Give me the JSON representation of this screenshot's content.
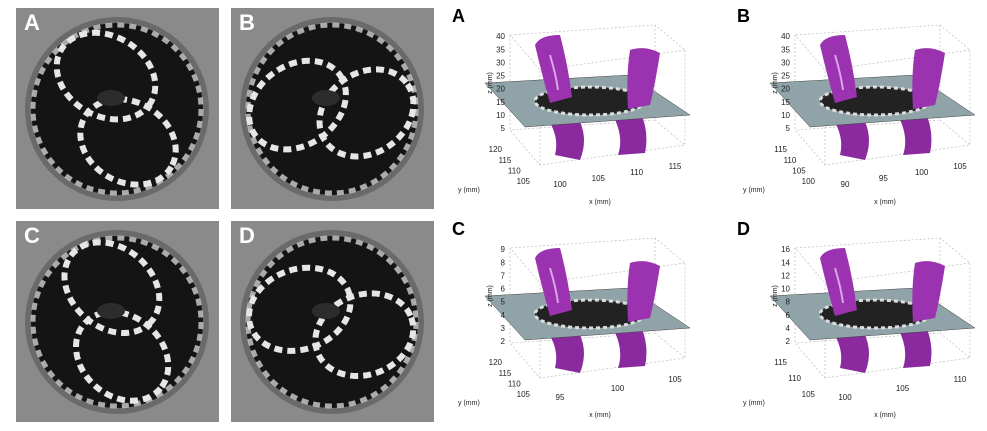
{
  "left_panels": [
    {
      "label": "A"
    },
    {
      "label": "B"
    },
    {
      "label": "C"
    },
    {
      "label": "D"
    }
  ],
  "right_panels": [
    {
      "label": "A",
      "z_label": "z (mm)",
      "z_ticks": [
        40,
        35,
        30,
        25,
        20,
        15,
        10,
        5
      ],
      "y_label": "y (mm)",
      "y_ticks": [
        120,
        115,
        110,
        105
      ],
      "x_label": "x (mm)",
      "x_ticks": [
        100,
        105,
        110,
        115
      ]
    },
    {
      "label": "B",
      "z_label": "z (mm)",
      "z_ticks": [
        40,
        35,
        30,
        25,
        20,
        15,
        10,
        5
      ],
      "y_label": "y (mm)",
      "y_ticks": [
        115,
        110,
        105,
        100
      ],
      "x_label": "x (mm)",
      "x_ticks": [
        90,
        95,
        100,
        105
      ]
    },
    {
      "label": "C",
      "z_label": "z (mm)",
      "z_ticks": [
        9,
        8,
        7,
        6,
        5,
        4,
        3,
        2
      ],
      "y_label": "y (mm)",
      "y_ticks": [
        120,
        115,
        110,
        105
      ],
      "x_label": "x (mm)",
      "x_ticks": [
        95,
        100,
        105
      ]
    },
    {
      "label": "D",
      "z_label": "z (mm)",
      "z_ticks": [
        16,
        14,
        12,
        10,
        8,
        6,
        4,
        2
      ],
      "y_label": "y (mm)",
      "y_ticks": [
        115,
        110,
        105
      ],
      "x_label": "x (mm)",
      "x_ticks": [
        100,
        105,
        110
      ]
    }
  ]
}
